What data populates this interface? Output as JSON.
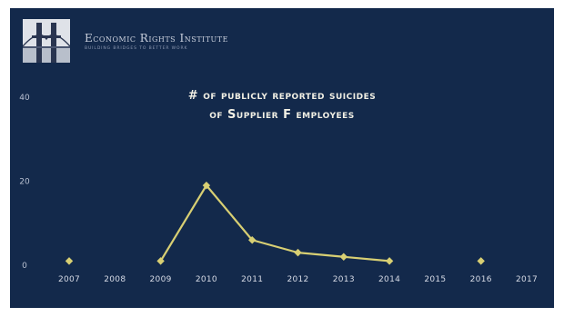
{
  "header": {
    "org_name": "Economic Rights Institute",
    "tagline": "Building Bridges to Better Work"
  },
  "chart_data": {
    "type": "line",
    "title_line1": "# of publicly reported suicides",
    "title_line2": "of Supplier F employees",
    "xlabel": "",
    "ylabel": "",
    "x": [
      "2007",
      "2008",
      "2009",
      "2010",
      "2011",
      "2012",
      "2013",
      "2014",
      "2015",
      "2016",
      "2017"
    ],
    "y_ticks": [
      0,
      20,
      40
    ],
    "ylim": [
      0,
      40
    ],
    "points": [
      {
        "x": "2007",
        "y": 1
      },
      {
        "x": "2009",
        "y": 1
      },
      {
        "x": "2010",
        "y": 19
      },
      {
        "x": "2011",
        "y": 6
      },
      {
        "x": "2012",
        "y": 3
      },
      {
        "x": "2013",
        "y": 2
      },
      {
        "x": "2014",
        "y": 1
      },
      {
        "x": "2016",
        "y": 1
      }
    ],
    "connected_segment": [
      "2009",
      "2010",
      "2011",
      "2012",
      "2013",
      "2014"
    ],
    "line_color": "#d8cf73",
    "marker": "diamond",
    "grid": false,
    "legend": "none"
  },
  "colors": {
    "background": "#13294b",
    "title_text": "#f1efe4",
    "axis_text": "#d7dbe6",
    "series": "#d8cf73"
  }
}
